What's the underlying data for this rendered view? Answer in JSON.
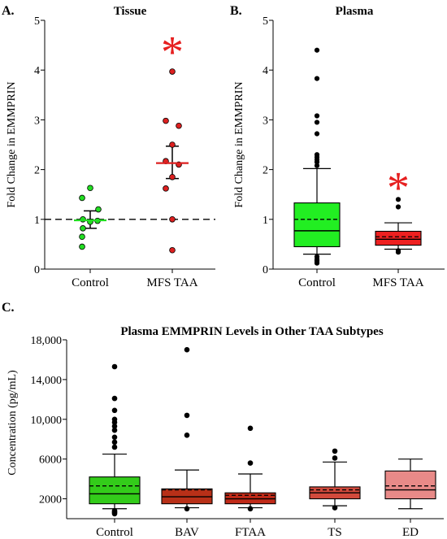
{
  "chart_data": [
    {
      "type": "scatter",
      "panel": "A.",
      "title": "Tissue",
      "ylabel": "Fold Change in EMMPRIN",
      "ylim": [
        0,
        5
      ],
      "yticks": [
        0,
        1,
        2,
        3,
        4,
        5
      ],
      "reference_line": 1,
      "categories": [
        "Control",
        "MFS TAA"
      ],
      "series": [
        {
          "name": "Control",
          "color": "#22dd22",
          "values": [
            1.63,
            1.43,
            1.2,
            1.0,
            0.97,
            0.95,
            0.82,
            0.65,
            0.45
          ],
          "mean": 0.98,
          "sem_upper": 1.17,
          "sem_lower": 0.82
        },
        {
          "name": "MFS TAA",
          "color": "#dd2020",
          "values": [
            3.97,
            2.98,
            2.88,
            2.5,
            2.17,
            2.1,
            1.85,
            1.62,
            1.0,
            0.38
          ],
          "mean": 2.13,
          "sem_upper": 2.47,
          "sem_lower": 1.82
        }
      ],
      "annotations": [
        {
          "text": "*",
          "category": "MFS TAA",
          "y": 4.55,
          "color": "#e62020"
        }
      ]
    },
    {
      "type": "box",
      "panel": "B.",
      "title": "Plasma",
      "ylabel": "Fold Change in EMMPRIN",
      "ylim": [
        0,
        5
      ],
      "yticks": [
        0,
        1,
        2,
        3,
        4,
        5
      ],
      "categories": [
        "Control",
        "MFS TAA"
      ],
      "boxes": [
        {
          "name": "Control",
          "color": "#22ee22",
          "q1": 0.45,
          "median": 0.77,
          "mean": 1.0,
          "q3": 1.33,
          "whisker_low": 0.3,
          "whisker_high": 2.02,
          "outliers": [
            4.4,
            3.83,
            3.08,
            2.95,
            2.72,
            2.3,
            2.25,
            2.2,
            2.15,
            2.08,
            0.25,
            0.2,
            0.17,
            0.15,
            0.12
          ]
        },
        {
          "name": "MFS TAA",
          "color": "#ee2020",
          "q1": 0.48,
          "median": 0.6,
          "mean": 0.65,
          "q3": 0.76,
          "whisker_low": 0.4,
          "whisker_high": 0.93,
          "outliers": [
            1.4,
            1.25,
            0.37,
            0.34
          ]
        }
      ],
      "annotations": [
        {
          "text": "*",
          "category": "MFS TAA",
          "y": 1.82,
          "color": "#e62020"
        }
      ]
    },
    {
      "type": "box",
      "panel": "C.",
      "title": "Plasma EMMPRIN Levels in Other TAA Subtypes",
      "ylabel": "Concentration (pg/mL)",
      "ylim": [
        0,
        18000
      ],
      "yticks": [
        2000,
        6000,
        10000,
        14000,
        18000
      ],
      "ytick_labels": [
        "2000",
        "6000",
        "10,000",
        "14,000",
        "18,000"
      ],
      "categories": [
        "Control",
        "BAV",
        "FTAA",
        "TS",
        "ED"
      ],
      "boxes": [
        {
          "name": "Control",
          "color": "#33cc1a",
          "q1": 1500,
          "median": 2500,
          "mean": 3300,
          "q3": 4200,
          "whisker_low": 1000,
          "whisker_high": 6500,
          "outliers": [
            15300,
            12100,
            10900,
            10000,
            9700,
            9300,
            8900,
            8200,
            7700,
            7200,
            800,
            700,
            600,
            500
          ]
        },
        {
          "name": "BAV",
          "color": "#b83018",
          "q1": 1500,
          "median": 2200,
          "mean": 2900,
          "q3": 3000,
          "whisker_low": 1100,
          "whisker_high": 4900,
          "outliers": [
            17000,
            10400,
            8400,
            1000
          ]
        },
        {
          "name": "FTAA",
          "color": "#c02a18",
          "q1": 1500,
          "median": 2000,
          "mean": 2350,
          "q3": 2600,
          "whisker_low": 1100,
          "whisker_high": 4500,
          "outliers": [
            9100,
            5600,
            1000
          ]
        },
        {
          "name": "TS",
          "color": "#d24a3c",
          "q1": 2000,
          "median": 2600,
          "mean": 2900,
          "q3": 3200,
          "whisker_low": 1300,
          "whisker_high": 5700,
          "outliers": [
            6800,
            6100,
            1100
          ]
        },
        {
          "name": "ED",
          "color": "#e88a88",
          "q1": 2000,
          "median": 2900,
          "mean": 3300,
          "q3": 4800,
          "whisker_low": 1000,
          "whisker_high": 6000,
          "outliers": []
        }
      ]
    }
  ]
}
